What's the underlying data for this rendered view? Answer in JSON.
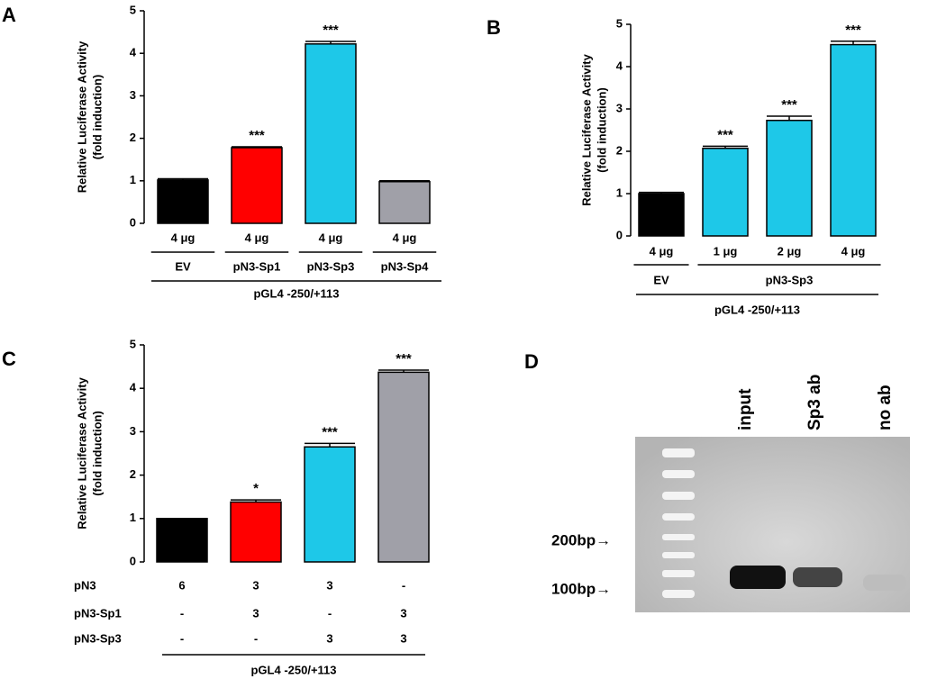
{
  "chart_data": [
    {
      "type": "bar",
      "panel": "A",
      "y_label": [
        "Relative Luciferase Activity",
        "(fold induction)"
      ],
      "categories": [
        "4 μg",
        "4 μg",
        "4 μg",
        "4 μg"
      ],
      "groups": [
        "EV",
        "pN3-Sp1",
        "pN3-Sp3",
        "pN3-Sp4"
      ],
      "footer": "pGL4 -250/+113",
      "values": [
        1.02,
        1.78,
        4.22,
        0.98
      ],
      "errors": [
        0.03,
        0.02,
        0.06,
        0.02
      ],
      "annotations": [
        null,
        "***",
        "***",
        null
      ],
      "colors": [
        "#000000",
        "#ff0000",
        "#1ec8e8",
        "#a0a0a8"
      ],
      "ylim": [
        0,
        5
      ],
      "yticks": [
        0,
        1,
        2,
        3,
        4,
        5
      ]
    },
    {
      "type": "bar",
      "panel": "B",
      "y_label": [
        "Relative Luciferase Activity",
        "(fold induction)"
      ],
      "categories": [
        "4 μg",
        "1 μg",
        "2 μg",
        "4 μg"
      ],
      "groups": [
        "EV",
        "pN3-Sp3"
      ],
      "footer": "pGL4 -250/+113",
      "values": [
        1.0,
        2.07,
        2.73,
        4.52
      ],
      "errors": [
        0.03,
        0.05,
        0.1,
        0.08
      ],
      "annotations": [
        null,
        "***",
        "***",
        "***"
      ],
      "colors": [
        "#000000",
        "#1ec8e8",
        "#1ec8e8",
        "#1ec8e8"
      ],
      "ylim": [
        0,
        5
      ],
      "yticks": [
        0,
        1,
        2,
        3,
        4,
        5
      ]
    },
    {
      "type": "bar",
      "panel": "C",
      "y_label": [
        "Relative Luciferase Activity",
        "(fold induction)"
      ],
      "rows": [
        {
          "name": "pN3",
          "values": [
            "6",
            "3",
            "3",
            "-"
          ]
        },
        {
          "name": "pN3-Sp1",
          "values": [
            "-",
            "3",
            "-",
            "3"
          ]
        },
        {
          "name": "pN3-Sp3",
          "values": [
            "-",
            "-",
            "3",
            "3"
          ]
        }
      ],
      "footer": "pGL4 -250/+113",
      "values": [
        1.0,
        1.38,
        2.65,
        4.37
      ],
      "errors": [
        0,
        0.05,
        0.08,
        0.05
      ],
      "annotations": [
        null,
        "*",
        "***",
        "***"
      ],
      "colors": [
        "#000000",
        "#ff0000",
        "#1ec8e8",
        "#a0a0a8"
      ],
      "ylim": [
        0,
        5
      ],
      "yticks": [
        0,
        1,
        2,
        3,
        4,
        5
      ]
    }
  ],
  "gel": {
    "panel": "D",
    "lanes": [
      "input",
      "Sp3 ab",
      "no ab"
    ],
    "markers": [
      "200bp→",
      "100bp→"
    ]
  }
}
